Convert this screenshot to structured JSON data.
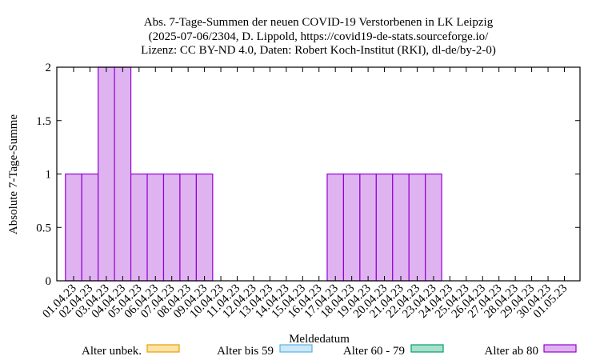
{
  "chart_data": {
    "type": "bar",
    "stacked": true,
    "title": [
      "Abs. 7-Tage-Summen der neuen COVID-19 Verstorbenen in LK Leipzig",
      "(2025-07-06/2304, D. Lippold, https://covid19-de-stats.sourceforge.io/",
      "Lizenz: CC BY-ND 4.0, Daten: Robert Koch-Institut (RKI), dl-de/by-2-0)"
    ],
    "xlabel": "Meldedatum",
    "ylabel": "Absolute 7-Tage-Summe",
    "ylim": [
      0,
      2
    ],
    "yticks": [
      "0",
      "0.5",
      "1",
      "1.5",
      "2"
    ],
    "categories": [
      "01.04.23",
      "02.04.23",
      "03.04.23",
      "04.04.23",
      "05.04.23",
      "06.04.23",
      "07.04.23",
      "08.04.23",
      "09.04.23",
      "10.04.23",
      "11.04.23",
      "12.04.23",
      "13.04.23",
      "14.04.23",
      "15.04.23",
      "16.04.23",
      "17.04.23",
      "18.04.23",
      "19.04.23",
      "20.04.23",
      "21.04.23",
      "22.04.23",
      "23.04.23",
      "24.04.23",
      "25.04.23",
      "26.04.23",
      "27.04.23",
      "28.04.23",
      "29.04.23",
      "30.04.23",
      "01.05.23"
    ],
    "series": [
      {
        "name": "Alter unbek.",
        "fill": "#fbe3a6",
        "stroke": "#e69f00",
        "values": [
          0,
          0,
          0,
          0,
          0,
          0,
          0,
          0,
          0,
          0,
          0,
          0,
          0,
          0,
          0,
          0,
          0,
          0,
          0,
          0,
          0,
          0,
          0,
          0,
          0,
          0,
          0,
          0,
          0,
          0,
          0
        ]
      },
      {
        "name": "Alter bis 59",
        "fill": "#cfe8f7",
        "stroke": "#56b4e9",
        "values": [
          0,
          0,
          0,
          0,
          0,
          0,
          0,
          0,
          0,
          0,
          0,
          0,
          0,
          0,
          0,
          0,
          0,
          0,
          0,
          0,
          0,
          0,
          0,
          0,
          0,
          0,
          0,
          0,
          0,
          0,
          0
        ]
      },
      {
        "name": "Alter 60 - 79",
        "fill": "#a8e0cc",
        "stroke": "#009e73",
        "values": [
          0,
          0,
          0,
          0,
          0,
          0,
          0,
          0,
          0,
          0,
          0,
          0,
          0,
          0,
          0,
          0,
          0,
          0,
          0,
          0,
          0,
          0,
          0,
          0,
          0,
          0,
          0,
          0,
          0,
          0,
          0
        ]
      },
      {
        "name": "Alter ab 80",
        "fill": "#dfb3f0",
        "stroke": "#9400d3",
        "values": [
          1,
          1,
          2,
          2,
          1,
          1,
          1,
          1,
          1,
          0,
          0,
          0,
          0,
          0,
          0,
          0,
          1,
          1,
          1,
          1,
          1,
          1,
          1,
          0,
          0,
          0,
          0,
          0,
          0,
          0,
          0
        ]
      }
    ],
    "legend_position": "bottom",
    "grid": false
  }
}
